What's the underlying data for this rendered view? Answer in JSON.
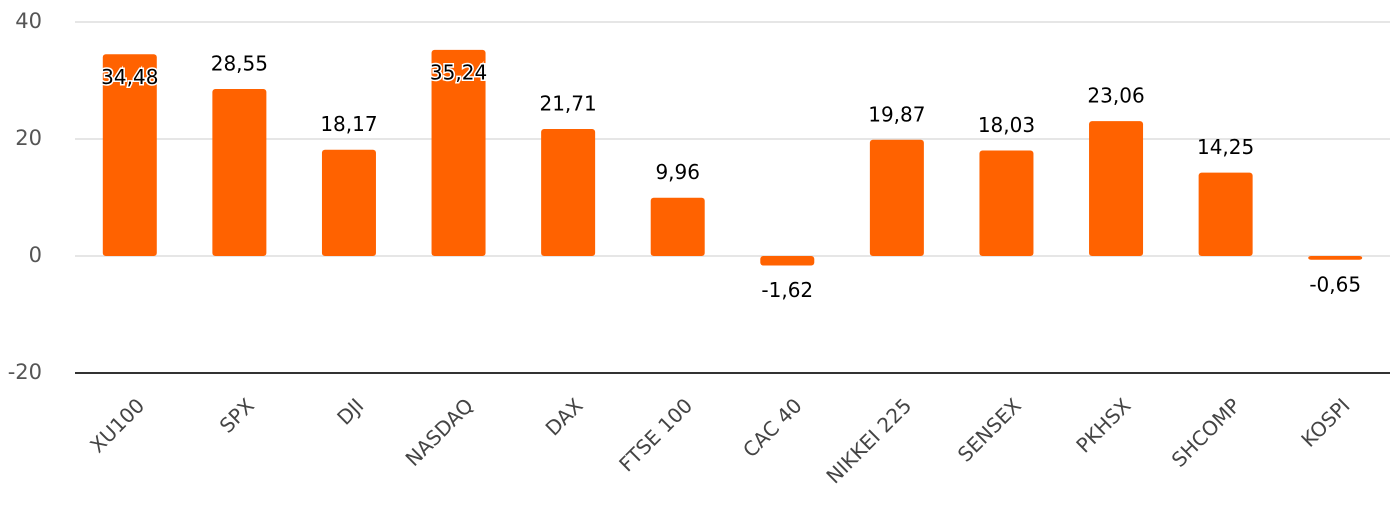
{
  "chart_data": {
    "type": "bar",
    "categories": [
      "XU100",
      "SPX",
      "DJI",
      "NASDAQ",
      "DAX",
      "FTSE 100",
      "CAC 40",
      "NIKKEI 225",
      "SENSEX",
      "PKHSX",
      "SHCOMP",
      "KOSPI"
    ],
    "values": [
      34.48,
      28.55,
      18.17,
      35.24,
      21.71,
      9.96,
      -1.62,
      19.87,
      18.03,
      23.06,
      14.25,
      -0.65
    ],
    "value_labels": [
      "34,48",
      "28,55",
      "18,17",
      "35,24",
      "21,71",
      "9,96",
      "-1,62",
      "19,87",
      "18,03",
      "23,06",
      "14,25",
      "-0,65"
    ],
    "color": "#ff6200",
    "ylim": [
      -20,
      40
    ],
    "yticks": [
      -20,
      0,
      20,
      40
    ],
    "grid": true
  }
}
